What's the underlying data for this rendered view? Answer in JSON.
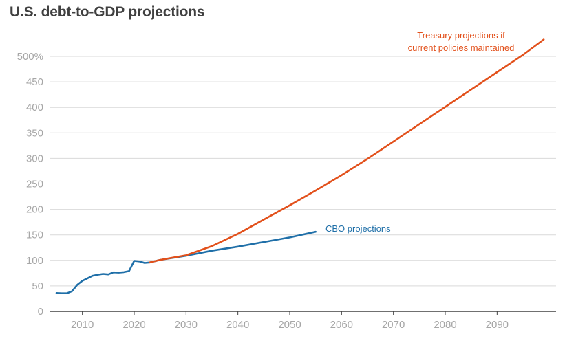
{
  "chart_data": {
    "type": "line",
    "title": "U.S. debt-to-GDP projections",
    "xlabel": "",
    "ylabel": "",
    "xlim": [
      2004,
      2100
    ],
    "ylim": [
      0,
      500
    ],
    "grid": true,
    "x_ticks": [
      2010,
      2020,
      2030,
      2040,
      2050,
      2060,
      2070,
      2080,
      2090
    ],
    "y_ticks": [
      {
        "value": 0,
        "label": "0"
      },
      {
        "value": 50,
        "label": "50"
      },
      {
        "value": 100,
        "label": "100"
      },
      {
        "value": 150,
        "label": "150"
      },
      {
        "value": 200,
        "label": "200"
      },
      {
        "value": 250,
        "label": "250"
      },
      {
        "value": 300,
        "label": "300"
      },
      {
        "value": 350,
        "label": "350"
      },
      {
        "value": 400,
        "label": "400"
      },
      {
        "value": 450,
        "label": "450"
      },
      {
        "value": 500,
        "label": "500%"
      }
    ],
    "series": [
      {
        "name": "CBO projections",
        "color": "#1f6fa8",
        "label_lines": [
          "CBO projections"
        ],
        "x": [
          2005,
          2006,
          2007,
          2008,
          2009,
          2010,
          2011,
          2012,
          2013,
          2014,
          2015,
          2016,
          2017,
          2018,
          2019,
          2020,
          2021,
          2022,
          2023,
          2025,
          2030,
          2035,
          2040,
          2045,
          2050,
          2055
        ],
        "y": [
          36,
          35.5,
          35.5,
          39.5,
          52,
          60,
          65,
          70,
          72,
          73.5,
          72.5,
          76.5,
          76,
          77,
          79,
          99,
          98,
          95,
          96,
          101,
          109,
          119,
          127,
          136,
          145,
          156
        ]
      },
      {
        "name": "Treasury projections if current policies maintained",
        "color": "#e2501b",
        "label_lines": [
          "Treasury projections if",
          "current policies maintained"
        ],
        "x": [
          2023,
          2025,
          2030,
          2035,
          2040,
          2045,
          2050,
          2055,
          2060,
          2065,
          2070,
          2075,
          2080,
          2085,
          2090,
          2095,
          2099
        ],
        "y": [
          96,
          101,
          110,
          128,
          152,
          180,
          208,
          237,
          267,
          299,
          333,
          367,
          401,
          435,
          469,
          503,
          533
        ]
      }
    ]
  }
}
